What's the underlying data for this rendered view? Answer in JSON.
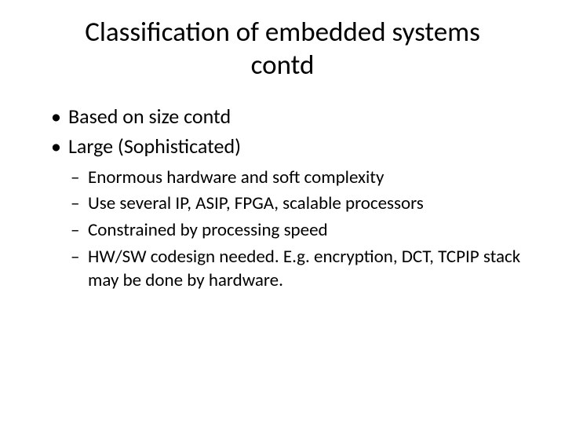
{
  "slide": {
    "title": "Classification of embedded systems contd",
    "bullets": [
      {
        "text": "Based on size contd"
      },
      {
        "text": "Large (Sophisticated)"
      }
    ],
    "subBullets": [
      {
        "text": "Enormous hardware and soft complexity"
      },
      {
        "text": "Use several IP, ASIP, FPGA, scalable processors"
      },
      {
        "text": "Constrained by processing speed"
      },
      {
        "text": "HW/SW codesign needed. E.g. encryption, DCT, TCPIP stack may be done by hardware."
      }
    ],
    "colors": {
      "background": "#ffffff",
      "text": "#000000"
    },
    "typography": {
      "title_fontsize": 35,
      "bullet_fontsize": 26,
      "sub_fontsize": 23,
      "font_family": "Calibri"
    }
  }
}
